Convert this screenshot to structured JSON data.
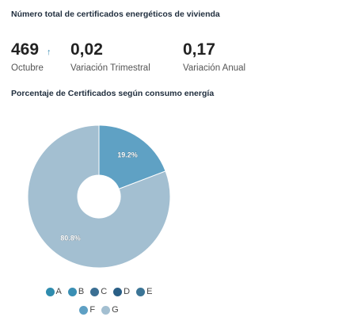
{
  "header": {
    "title": "Número total de certificados energéticos de vivienda"
  },
  "kpis": [
    {
      "value": "469",
      "label": "Octubre"
    },
    {
      "value": "0,02",
      "label": "Variación Trimestral"
    },
    {
      "value": "0,17",
      "label": "Variación Anual"
    }
  ],
  "trend_icon": "arrow-up-icon",
  "colors": {
    "A": "#2f8cae",
    "B": "#3a8fb4",
    "C": "#3b6f93",
    "D": "#2a5f86",
    "E": "#3c7596",
    "F": "#5ea0c4",
    "G": "#a3bfd1",
    "slice_B": "#5fa1c4",
    "slice_G": "#a3bfd1"
  },
  "chart_data": {
    "type": "pie",
    "title": "Porcentaje de Certificados según consumo energía",
    "categories": [
      "A",
      "B",
      "C",
      "D",
      "E",
      "F",
      "G"
    ],
    "values": [
      0,
      19.2,
      0,
      0,
      0,
      0,
      80.8
    ],
    "value_labels": [
      "",
      "19.2%",
      "",
      "",
      "",
      "",
      "80.8%"
    ],
    "donut": true,
    "legend_position": "bottom"
  }
}
